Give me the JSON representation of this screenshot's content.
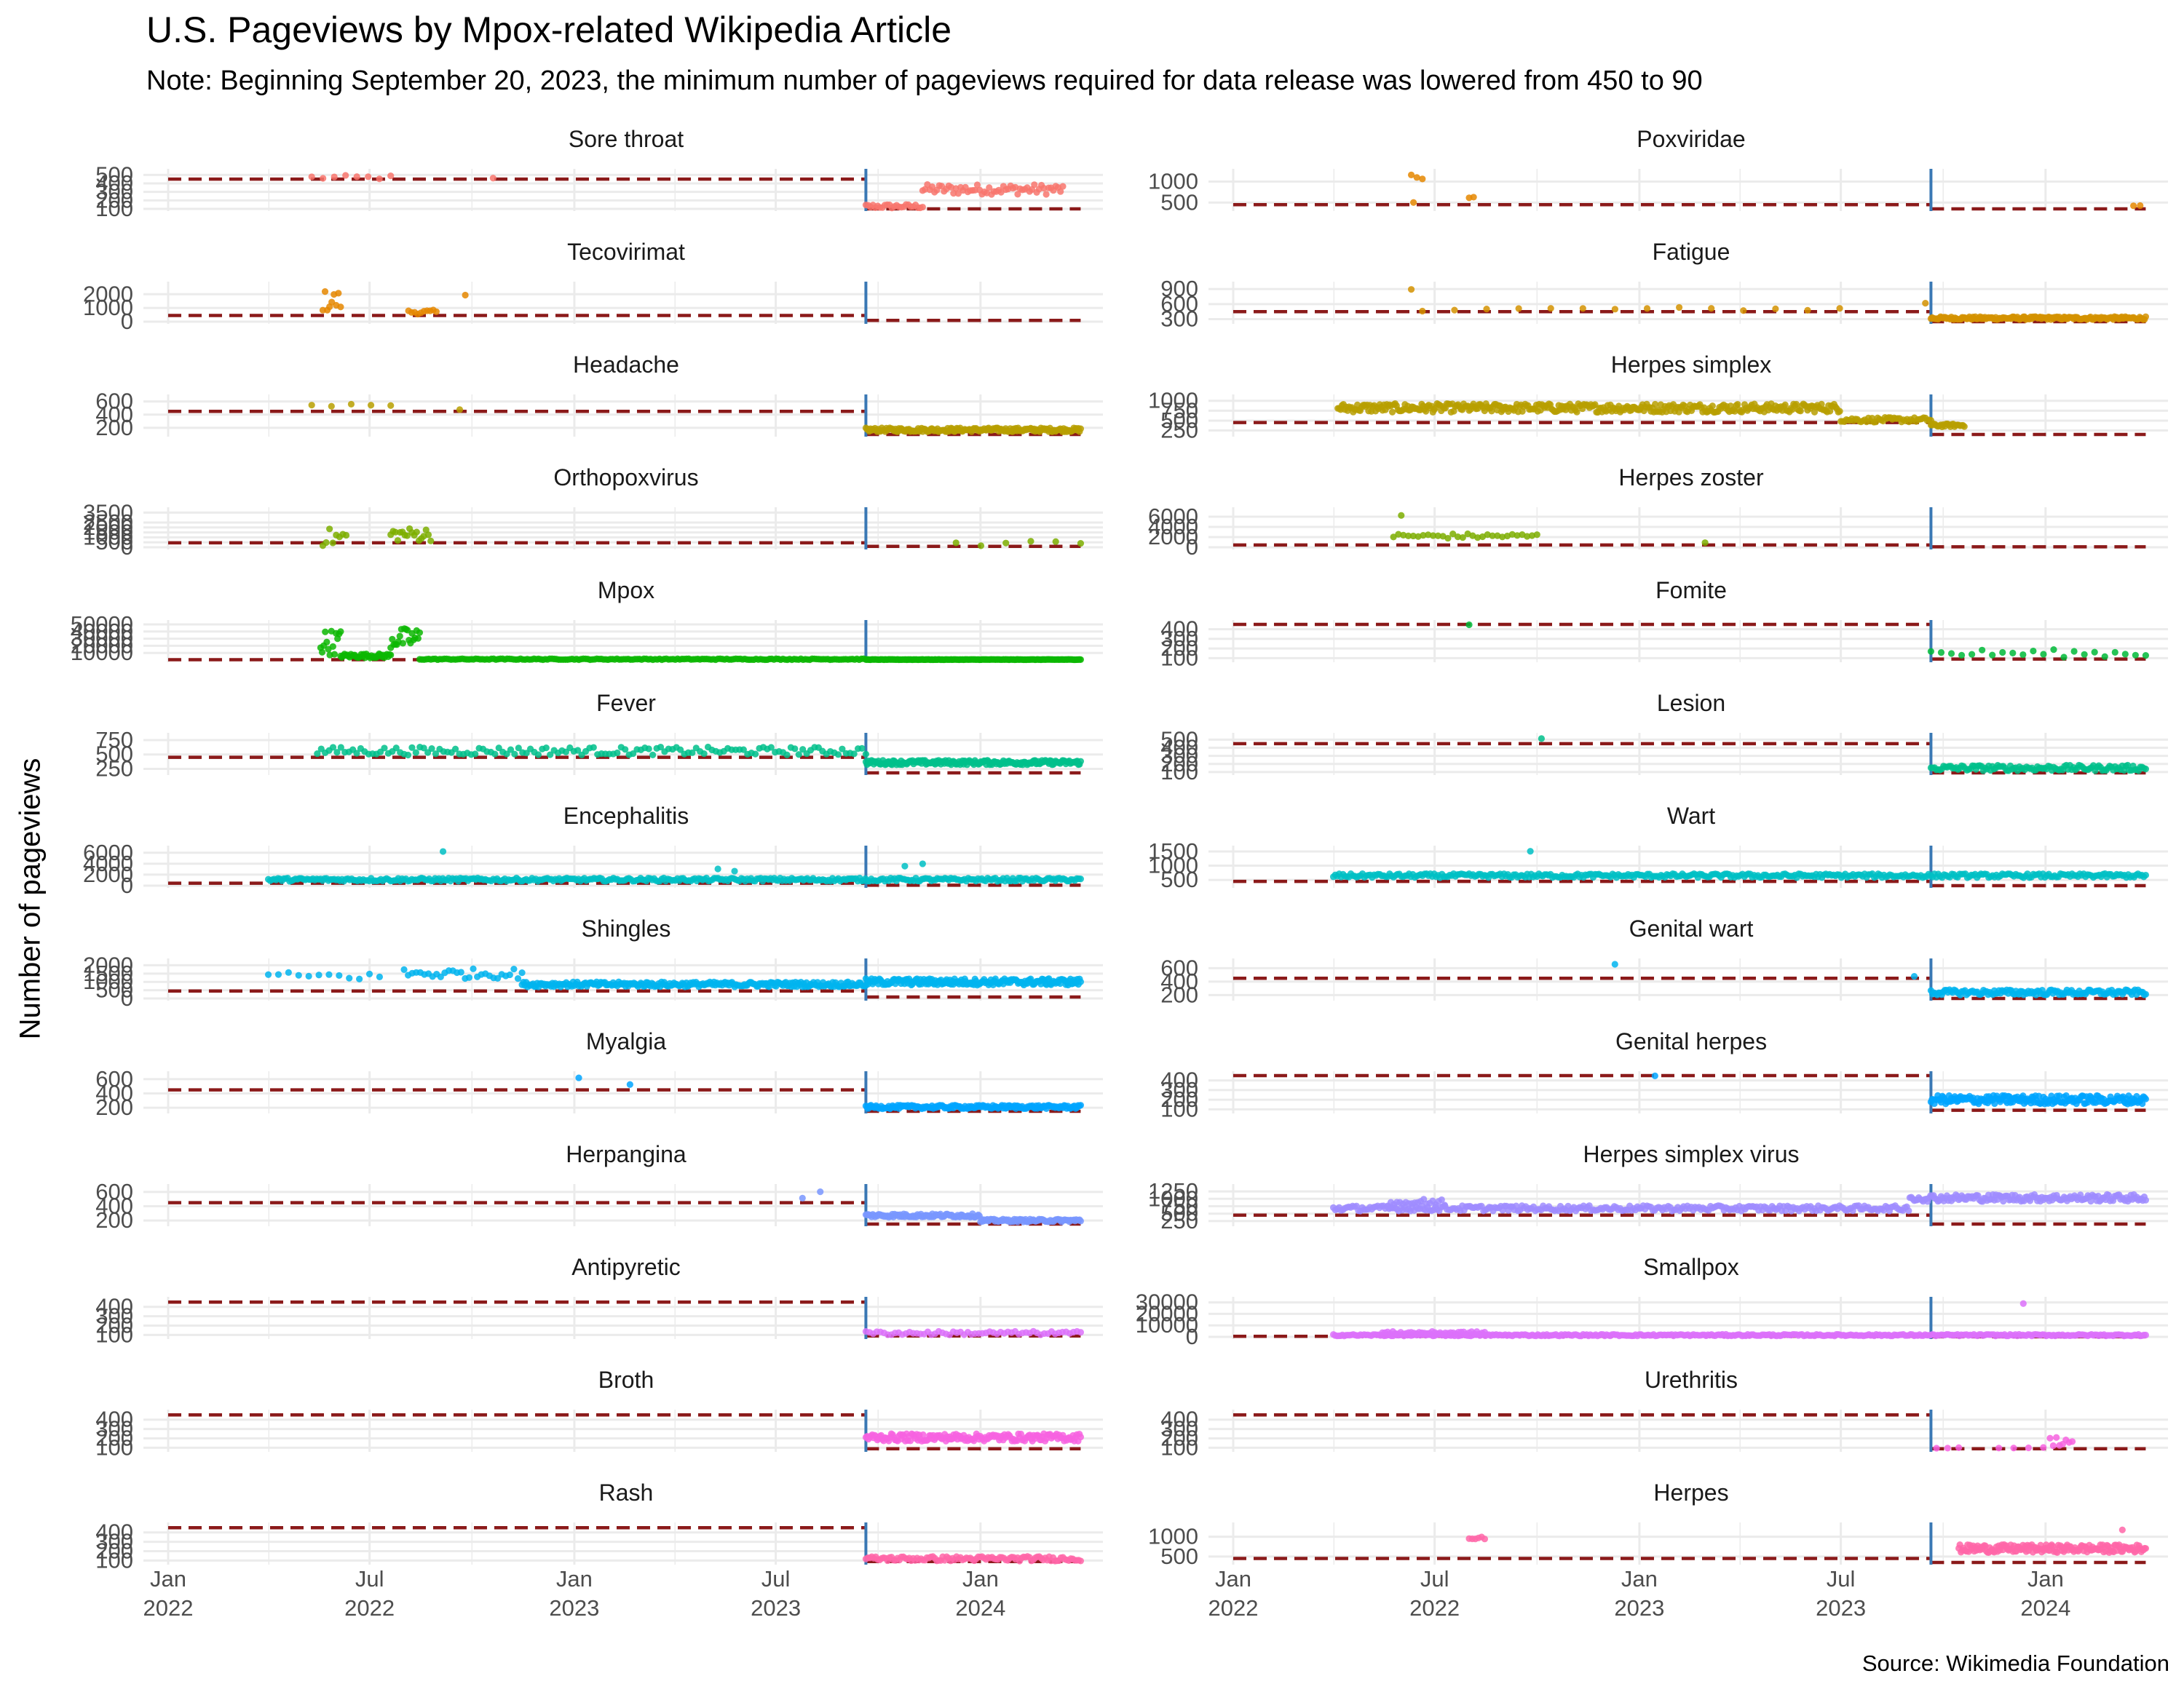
{
  "title": "U.S. Pageviews by Mpox-related Wikipedia Article",
  "subtitle": "Note: Beginning September 20, 2023, the minimum number of pageviews required for data release was lowered from 450 to 90",
  "ylabel": "Number of pageviews",
  "caption": "Source: Wikimedia Foundation",
  "colors": {
    "threshold_line": "#8b1a1a",
    "policy_change_line": "#3a78b4",
    "grid": "#ebebeb"
  },
  "chart_data": {
    "type": "scatter",
    "facet_layout": "2 columns x 13 rows",
    "x_axis": {
      "range": [
        "2021-12-15",
        "2024-04-20"
      ],
      "ticks": [
        {
          "date": "2022-01-01",
          "label": "Jan\n2022"
        },
        {
          "date": "2022-07-01",
          "label": "Jul\n2022"
        },
        {
          "date": "2023-01-01",
          "label": "Jan\n2023"
        },
        {
          "date": "2023-07-01",
          "label": "Jul\n2023"
        },
        {
          "date": "2024-01-01",
          "label": "Jan\n2024"
        }
      ]
    },
    "policy_change_date": "2023-09-20",
    "thresholds": {
      "before": 450,
      "after": 90
    },
    "panels": [
      {
        "name": "Sore throat",
        "color": "#F8766D",
        "ylim": [
          100,
          520
        ],
        "yticks": [
          100,
          200,
          300,
          400,
          500
        ],
        "segments": [
          {
            "from": "2022-05-10",
            "to": "2022-07-20",
            "y": 470,
            "spread": 25,
            "n": 8
          },
          {
            "from": "2022-10-20",
            "to": "2022-10-30",
            "y": 460,
            "spread": 5,
            "n": 1
          },
          {
            "from": "2023-09-20",
            "to": "2023-11-10",
            "y": 130,
            "spread": 25,
            "n": 25
          },
          {
            "from": "2023-11-10",
            "to": "2024-03-15",
            "y": 330,
            "spread": 60,
            "n": 60
          }
        ]
      },
      {
        "name": "Poxviridae",
        "color": "#E58700",
        "ylim": [
          350,
          1200
        ],
        "yticks": [
          500,
          1000
        ],
        "segments": [
          {
            "from": "2022-06-10",
            "to": "2022-06-20",
            "y": 1100,
            "spread": 60,
            "n": 3
          },
          {
            "from": "2022-06-12",
            "to": "2022-06-16",
            "y": 500,
            "spread": 10,
            "n": 1
          },
          {
            "from": "2022-08-01",
            "to": "2022-08-05",
            "y": 600,
            "spread": 40,
            "n": 2
          },
          {
            "from": "2024-03-20",
            "to": "2024-03-26",
            "y": 420,
            "spread": 20,
            "n": 2
          }
        ]
      },
      {
        "name": "Tecovirimat",
        "color": "#E58700",
        "ylim": [
          0,
          2600
        ],
        "yticks": [
          0,
          1000,
          2000
        ],
        "segments": [
          {
            "from": "2022-05-20",
            "to": "2022-06-05",
            "y": 1500,
            "spread": 800,
            "n": 9
          },
          {
            "from": "2022-08-05",
            "to": "2022-08-30",
            "y": 700,
            "spread": 150,
            "n": 10
          },
          {
            "from": "2022-09-25",
            "to": "2022-09-30",
            "y": 1900,
            "spread": 50,
            "n": 1
          }
        ]
      },
      {
        "name": "Fatigue",
        "color": "#D39200",
        "ylim": [
          250,
          960
        ],
        "yticks": [
          300,
          600,
          900
        ],
        "segments": [
          {
            "from": "2022-06-10",
            "to": "2022-06-15",
            "y": 900,
            "spread": 20,
            "n": 1
          },
          {
            "from": "2022-06-20",
            "to": "2023-06-30",
            "y": 500,
            "spread": 40,
            "n": 14
          },
          {
            "from": "2023-09-15",
            "to": "2023-09-20",
            "y": 620,
            "spread": 20,
            "n": 1
          },
          {
            "from": "2023-09-20",
            "to": "2024-03-31",
            "y": 320,
            "spread": 30,
            "n": 180
          }
        ]
      },
      {
        "name": "Headache",
        "color": "#B79F00",
        "ylim": [
          100,
          640
        ],
        "yticks": [
          200,
          400,
          600
        ],
        "segments": [
          {
            "from": "2022-05-10",
            "to": "2022-07-20",
            "y": 520,
            "spread": 40,
            "n": 5
          },
          {
            "from": "2022-09-20",
            "to": "2022-09-25",
            "y": 470,
            "spread": 10,
            "n": 1
          },
          {
            "from": "2023-09-20",
            "to": "2024-03-31",
            "y": 170,
            "spread": 30,
            "n": 190
          }
        ]
      },
      {
        "name": "Herpes simplex",
        "color": "#B79F00",
        "ylim": [
          150,
          1050
        ],
        "yticks": [
          250,
          500,
          750,
          1000
        ],
        "segments": [
          {
            "from": "2022-04-05",
            "to": "2023-06-30",
            "y": 820,
            "spread": 110,
            "n": 360
          },
          {
            "from": "2023-07-01",
            "to": "2023-09-20",
            "y": 520,
            "spread": 60,
            "n": 50
          },
          {
            "from": "2023-09-20",
            "to": "2023-10-20",
            "y": 380,
            "spread": 40,
            "n": 25
          }
        ]
      },
      {
        "name": "Orthopoxvirus",
        "color": "#7CAE00",
        "ylim": [
          0,
          3600
        ],
        "yticks": [
          0,
          500,
          1000,
          1500,
          2000,
          2500,
          3500
        ],
        "segments": [
          {
            "from": "2022-05-20",
            "to": "2022-06-10",
            "y": 1000,
            "spread": 900,
            "n": 8
          },
          {
            "from": "2022-07-20",
            "to": "2022-08-25",
            "y": 1300,
            "spread": 700,
            "n": 18
          },
          {
            "from": "2023-12-10",
            "to": "2024-03-31",
            "y": 400,
            "spread": 250,
            "n": 6
          }
        ]
      },
      {
        "name": "Herpes zoster",
        "color": "#7CAE00",
        "ylim": [
          0,
          7000
        ],
        "yticks": [
          0,
          2000,
          4000,
          6000
        ],
        "segments": [
          {
            "from": "2022-06-01",
            "to": "2022-06-10",
            "y": 6300,
            "spread": 100,
            "n": 1
          },
          {
            "from": "2022-05-25",
            "to": "2022-10-01",
            "y": 2200,
            "spread": 500,
            "n": 30
          },
          {
            "from": "2023-03-01",
            "to": "2023-03-10",
            "y": 1000,
            "spread": 200,
            "n": 1
          }
        ]
      },
      {
        "name": "Mpox",
        "color": "#0CB702",
        "ylim": [
          0,
          50000
        ],
        "yticks": [
          10000,
          20000,
          30000,
          40000,
          50000
        ],
        "segments": [
          {
            "from": "2022-05-18",
            "to": "2022-06-05",
            "y": 25000,
            "spread": 18000,
            "n": 14
          },
          {
            "from": "2022-06-05",
            "to": "2022-07-20",
            "y": 6000,
            "spread": 3000,
            "n": 40
          },
          {
            "from": "2022-07-20",
            "to": "2022-08-15",
            "y": 30000,
            "spread": 15000,
            "n": 20
          },
          {
            "from": "2022-08-15",
            "to": "2023-09-20",
            "y": 1200,
            "spread": 700,
            "n": 200
          },
          {
            "from": "2023-09-20",
            "to": "2024-03-31",
            "y": 700,
            "spread": 200,
            "n": 190
          }
        ]
      },
      {
        "name": "Fomite",
        "color": "#00BA38",
        "ylim": [
          80,
          450
        ],
        "yticks": [
          100,
          200,
          300,
          400
        ],
        "segments": [
          {
            "from": "2022-08-01",
            "to": "2022-08-10",
            "y": 450,
            "spread": 5,
            "n": 1
          },
          {
            "from": "2023-09-20",
            "to": "2024-03-31",
            "y": 150,
            "spread": 40,
            "n": 22
          }
        ]
      },
      {
        "name": "Fever",
        "color": "#00C08B",
        "ylim": [
          180,
          800
        ],
        "yticks": [
          250,
          500,
          750
        ],
        "segments": [
          {
            "from": "2022-05-15",
            "to": "2023-09-20",
            "y": 560,
            "spread": 70,
            "n": 140
          },
          {
            "from": "2023-09-20",
            "to": "2024-03-31",
            "y": 360,
            "spread": 40,
            "n": 190
          }
        ]
      },
      {
        "name": "Lesion",
        "color": "#00C08B",
        "ylim": [
          90,
          530
        ],
        "yticks": [
          100,
          200,
          300,
          400,
          500
        ],
        "segments": [
          {
            "from": "2022-10-05",
            "to": "2022-10-08",
            "y": 510,
            "spread": 5,
            "n": 1
          },
          {
            "from": "2023-09-20",
            "to": "2024-03-31",
            "y": 150,
            "spread": 35,
            "n": 120
          }
        ]
      },
      {
        "name": "Encephalitis",
        "color": "#00BFC4",
        "ylim": [
          0,
          6500
        ],
        "yticks": [
          0,
          2000,
          4000,
          6000
        ],
        "segments": [
          {
            "from": "2022-04-01",
            "to": "2024-03-31",
            "y": 1100,
            "spread": 300,
            "n": 420
          },
          {
            "from": "2022-09-05",
            "to": "2022-09-10",
            "y": 6200,
            "spread": 50,
            "n": 1
          },
          {
            "from": "2023-05-10",
            "to": "2023-05-25",
            "y": 2800,
            "spread": 500,
            "n": 2
          },
          {
            "from": "2023-10-25",
            "to": "2023-11-10",
            "y": 3500,
            "spread": 600,
            "n": 2
          }
        ]
      },
      {
        "name": "Wart",
        "color": "#00BFC4",
        "ylim": [
          300,
          1550
        ],
        "yticks": [
          500,
          1000,
          1500
        ],
        "segments": [
          {
            "from": "2022-04-01",
            "to": "2024-03-31",
            "y": 650,
            "spread": 70,
            "n": 420
          },
          {
            "from": "2022-09-25",
            "to": "2022-09-30",
            "y": 1500,
            "spread": 20,
            "n": 1
          }
        ]
      },
      {
        "name": "Shingles",
        "color": "#00B4EF",
        "ylim": [
          0,
          2150
        ],
        "yticks": [
          0,
          500,
          1000,
          1500,
          2000
        ],
        "segments": [
          {
            "from": "2022-04-01",
            "to": "2022-07-10",
            "y": 1350,
            "spread": 250,
            "n": 12
          },
          {
            "from": "2022-08-01",
            "to": "2022-11-15",
            "y": 1500,
            "spread": 300,
            "n": 30
          },
          {
            "from": "2022-11-15",
            "to": "2023-09-20",
            "y": 850,
            "spread": 150,
            "n": 250
          },
          {
            "from": "2023-09-20",
            "to": "2024-03-31",
            "y": 1000,
            "spread": 200,
            "n": 190
          }
        ]
      },
      {
        "name": "Genital wart",
        "color": "#00B4EF",
        "ylim": [
          150,
          680
        ],
        "yticks": [
          200,
          400,
          600
        ],
        "segments": [
          {
            "from": "2022-12-10",
            "to": "2022-12-14",
            "y": 660,
            "spread": 5,
            "n": 1
          },
          {
            "from": "2023-09-05",
            "to": "2023-09-10",
            "y": 480,
            "spread": 5,
            "n": 1
          },
          {
            "from": "2023-09-20",
            "to": "2024-03-31",
            "y": 240,
            "spread": 40,
            "n": 140
          }
        ]
      },
      {
        "name": "Myalgia",
        "color": "#00A5FF",
        "ylim": [
          150,
          650
        ],
        "yticks": [
          200,
          400,
          600
        ],
        "segments": [
          {
            "from": "2023-01-05",
            "to": "2023-01-08",
            "y": 620,
            "spread": 5,
            "n": 1
          },
          {
            "from": "2023-02-20",
            "to": "2023-02-23",
            "y": 520,
            "spread": 5,
            "n": 1
          },
          {
            "from": "2023-09-20",
            "to": "2024-03-31",
            "y": 210,
            "spread": 25,
            "n": 170
          }
        ]
      },
      {
        "name": "Genital herpes",
        "color": "#00A5FF",
        "ylim": [
          80,
          450
        ],
        "yticks": [
          100,
          200,
          300,
          400
        ],
        "segments": [
          {
            "from": "2023-01-15",
            "to": "2023-01-18",
            "y": 450,
            "spread": 5,
            "n": 1
          },
          {
            "from": "2023-09-20",
            "to": "2024-03-31",
            "y": 200,
            "spread": 45,
            "n": 190
          }
        ]
      },
      {
        "name": "Herpangina",
        "color": "#7997FF",
        "ylim": [
          150,
          650
        ],
        "yticks": [
          200,
          400,
          600
        ],
        "segments": [
          {
            "from": "2023-08-10",
            "to": "2023-08-15",
            "y": 600,
            "spread": 10,
            "n": 1
          },
          {
            "from": "2023-07-25",
            "to": "2023-07-30",
            "y": 520,
            "spread": 10,
            "n": 1
          },
          {
            "from": "2023-09-20",
            "to": "2023-12-31",
            "y": 270,
            "spread": 25,
            "n": 100
          },
          {
            "from": "2024-01-01",
            "to": "2024-03-31",
            "y": 200,
            "spread": 20,
            "n": 90
          }
        ]
      },
      {
        "name": "Herpes simplex virus",
        "color": "#9F8CFF",
        "ylim": [
          150,
          1350
        ],
        "yticks": [
          250,
          500,
          750,
          1000,
          1250
        ],
        "segments": [
          {
            "from": "2022-04-01",
            "to": "2023-08-31",
            "y": 680,
            "spread": 90,
            "n": 300
          },
          {
            "from": "2022-05-20",
            "to": "2022-07-10",
            "y": 880,
            "spread": 120,
            "n": 20
          },
          {
            "from": "2023-09-01",
            "to": "2024-03-31",
            "y": 1030,
            "spread": 120,
            "n": 160
          }
        ]
      },
      {
        "name": "Antipyretic",
        "color": "#DC71FA",
        "ylim": [
          80,
          460
        ],
        "yticks": [
          100,
          200,
          300,
          400
        ],
        "segments": [
          {
            "from": "2023-09-20",
            "to": "2024-03-31",
            "y": 120,
            "spread": 20,
            "n": 60
          }
        ]
      },
      {
        "name": "Smallpox",
        "color": "#DC71FA",
        "ylim": [
          0,
          31000
        ],
        "yticks": [
          0,
          10000,
          20000,
          30000
        ],
        "segments": [
          {
            "from": "2022-04-01",
            "to": "2024-03-31",
            "y": 1500,
            "spread": 700,
            "n": 450
          },
          {
            "from": "2022-05-15",
            "to": "2022-08-15",
            "y": 3500,
            "spread": 1200,
            "n": 40
          },
          {
            "from": "2023-12-12",
            "to": "2023-12-15",
            "y": 29000,
            "spread": 200,
            "n": 1
          }
        ]
      },
      {
        "name": "Broth",
        "color": "#F763E0",
        "ylim": [
          80,
          460
        ],
        "yticks": [
          100,
          200,
          300,
          400
        ],
        "segments": [
          {
            "from": "2023-09-20",
            "to": "2024-03-31",
            "y": 210,
            "spread": 40,
            "n": 170
          }
        ]
      },
      {
        "name": "Urethritis",
        "color": "#F763E0",
        "ylim": [
          80,
          460
        ],
        "yticks": [
          100,
          200,
          300,
          400
        ],
        "segments": [
          {
            "from": "2023-09-25",
            "to": "2023-10-15",
            "y": 100,
            "spread": 5,
            "n": 3
          },
          {
            "from": "2023-11-20",
            "to": "2023-12-30",
            "y": 100,
            "spread": 5,
            "n": 4
          },
          {
            "from": "2024-01-05",
            "to": "2024-01-25",
            "y": 170,
            "spread": 50,
            "n": 8
          }
        ]
      },
      {
        "name": "Rash",
        "color": "#FF66A8",
        "ylim": [
          80,
          460
        ],
        "yticks": [
          100,
          200,
          300,
          400
        ],
        "segments": [
          {
            "from": "2023-09-20",
            "to": "2024-03-31",
            "y": 120,
            "spread": 25,
            "n": 110
          }
        ]
      },
      {
        "name": "Herpes",
        "color": "#FF66A8",
        "ylim": [
          350,
          1250
        ],
        "yticks": [
          500,
          1000
        ],
        "segments": [
          {
            "from": "2022-08-01",
            "to": "2022-08-15",
            "y": 960,
            "spread": 40,
            "n": 6
          },
          {
            "from": "2023-10-15",
            "to": "2024-03-31",
            "y": 700,
            "spread": 100,
            "n": 170
          },
          {
            "from": "2024-03-10",
            "to": "2024-03-12",
            "y": 1180,
            "spread": 10,
            "n": 1
          }
        ]
      }
    ]
  }
}
